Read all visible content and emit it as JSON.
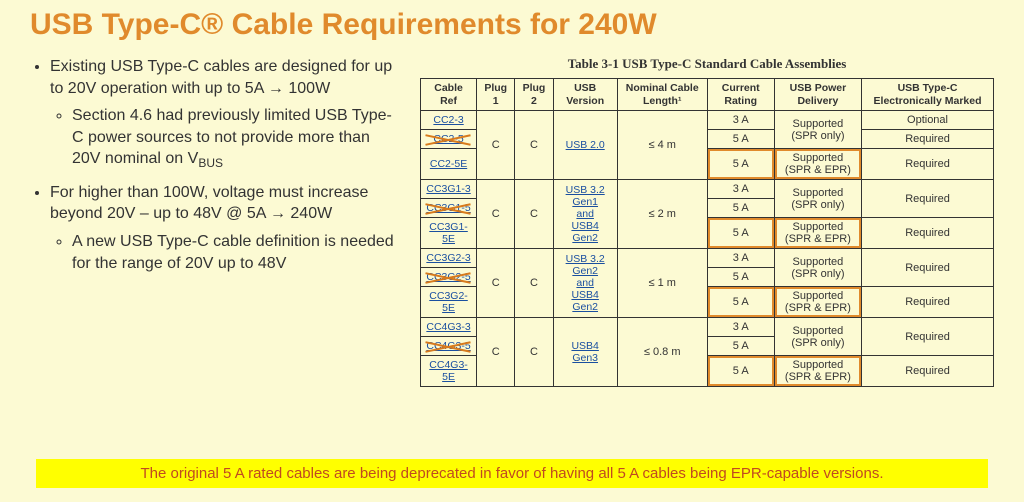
{
  "title": "USB Type-C® Cable Requirements for 240W",
  "bullets": {
    "b1": "Existing USB Type-C cables are designed for up to 20V operation with up to 5A → 100W",
    "b1a_pre": "Section 4.6 had previously limited USB Type-C power sources to not provide more than 20V nominal on V",
    "b1a_sub": "BUS",
    "b2": "For higher than 100W, voltage must increase beyond 20V – up to 48V @ 5A → 240W",
    "b2a": "A new USB Type-C cable definition is needed for the range of 20V up to 48V"
  },
  "table": {
    "caption": "Table 3-1  USB Type-C Standard Cable Assemblies",
    "headers": [
      "Cable Ref",
      "Plug 1",
      "Plug 2",
      "USB Version",
      "Nominal Cable Length¹",
      "Current Rating",
      "USB Power Delivery",
      "USB Type-C Electronically Marked"
    ],
    "groups": [
      {
        "refs": [
          "CC2-3",
          "CC2-5",
          "CC2-5E"
        ],
        "strike": [
          false,
          true,
          false
        ],
        "plug1": "C",
        "plug2": "C",
        "usb": "USB 2.0",
        "length": "≤ 4 m",
        "rows": [
          {
            "current": "3 A",
            "pd": "Supported (SPR only)",
            "marked": "Optional",
            "hl": false,
            "pdrs": 2
          },
          {
            "current": "5 A",
            "pd": "",
            "marked": "Required",
            "hl": false
          },
          {
            "current": "5 A",
            "pd": "Supported (SPR & EPR)",
            "marked": "Required",
            "hl": true,
            "pdrs": 1
          }
        ]
      },
      {
        "refs": [
          "CC3G1-3",
          "CC3G1-5",
          "CC3G1-5E"
        ],
        "strike": [
          false,
          true,
          false
        ],
        "plug1": "C",
        "plug2": "C",
        "usb": "USB 3.2 Gen1 and USB4 Gen2",
        "length": "≤ 2 m",
        "rows": [
          {
            "current": "3 A",
            "pd": "Supported (SPR only)",
            "marked": "Required",
            "hl": false,
            "pdrs": 2
          },
          {
            "current": "5 A",
            "pd": "",
            "marked": "",
            "hl": false
          },
          {
            "current": "5 A",
            "pd": "Supported (SPR & EPR)",
            "marked": "Required",
            "hl": true,
            "pdrs": 1
          }
        ]
      },
      {
        "refs": [
          "CC3G2-3",
          "CC3G2-5",
          "CC3G2-5E"
        ],
        "strike": [
          false,
          true,
          false
        ],
        "plug1": "C",
        "plug2": "C",
        "usb": "USB 3.2 Gen2 and USB4 Gen2",
        "length": "≤ 1 m",
        "rows": [
          {
            "current": "3 A",
            "pd": "Supported (SPR only)",
            "marked": "Required",
            "hl": false,
            "pdrs": 2
          },
          {
            "current": "5 A",
            "pd": "",
            "marked": "",
            "hl": false
          },
          {
            "current": "5 A",
            "pd": "Supported (SPR & EPR)",
            "marked": "Required",
            "hl": true,
            "pdrs": 1
          }
        ]
      },
      {
        "refs": [
          "CC4G3-3",
          "CC4G3-5",
          "CC4G3-5E"
        ],
        "strike": [
          false,
          true,
          false
        ],
        "plug1": "C",
        "plug2": "C",
        "usb": "USB4 Gen3",
        "length": "≤ 0.8 m",
        "rows": [
          {
            "current": "3 A",
            "pd": "Supported (SPR only)",
            "marked": "Required",
            "hl": false,
            "pdrs": 2
          },
          {
            "current": "5 A",
            "pd": "",
            "marked": "",
            "hl": false
          },
          {
            "current": "5 A",
            "pd": "Supported (SPR & EPR)",
            "marked": "Required",
            "hl": true,
            "pdrs": 1
          }
        ]
      }
    ]
  },
  "banner": "The original 5 A rated cables are being deprecated in favor of having all 5 A cables being EPR-capable versions.",
  "colors": {
    "title": "#e08a2c",
    "background": "#fcfad3",
    "highlight_border": "#e08a2c",
    "banner_bg": "#ffff00",
    "banner_text": "#c04a20",
    "link": "#1a4fa0"
  }
}
